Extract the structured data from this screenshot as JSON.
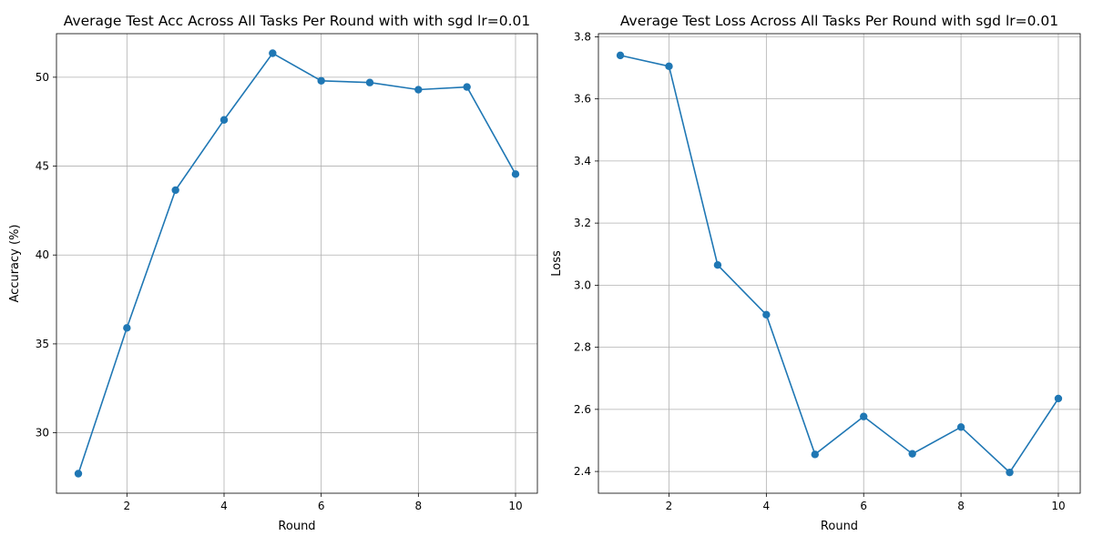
{
  "chart_data": [
    {
      "type": "line",
      "title": "Average Test Acc Across All Tasks Per Round with with sgd lr=0.01",
      "xlabel": "Round",
      "ylabel": "Accuracy (%)",
      "grid": true,
      "xlim": [
        0.55,
        10.45
      ],
      "ylim": [
        26.6,
        52.45
      ],
      "xticks": [
        2,
        4,
        6,
        8,
        10
      ],
      "yticks": [
        30,
        35,
        40,
        45,
        50
      ],
      "color": "#1f77b4",
      "marker": "circle",
      "x": [
        1,
        2,
        3,
        4,
        5,
        6,
        7,
        8,
        9,
        10
      ],
      "y": [
        27.7,
        35.9,
        43.65,
        47.6,
        51.35,
        49.8,
        49.7,
        49.3,
        49.45,
        44.55
      ]
    },
    {
      "type": "line",
      "title": "Average Test Loss Across All Tasks Per Round with sgd lr=0.01",
      "xlabel": "Round",
      "ylabel": "Loss",
      "grid": true,
      "xlim": [
        0.55,
        10.45
      ],
      "ylim": [
        2.33,
        3.81
      ],
      "xticks": [
        2,
        4,
        6,
        8,
        10
      ],
      "yticks": [
        2.4,
        2.6,
        2.8,
        3.0,
        3.2,
        3.4,
        3.6,
        3.8
      ],
      "color": "#1f77b4",
      "marker": "circle",
      "x": [
        1,
        2,
        3,
        4,
        5,
        6,
        7,
        8,
        9,
        10
      ],
      "y": [
        3.74,
        3.705,
        3.065,
        2.905,
        2.455,
        2.577,
        2.457,
        2.543,
        2.397,
        2.635
      ]
    }
  ]
}
